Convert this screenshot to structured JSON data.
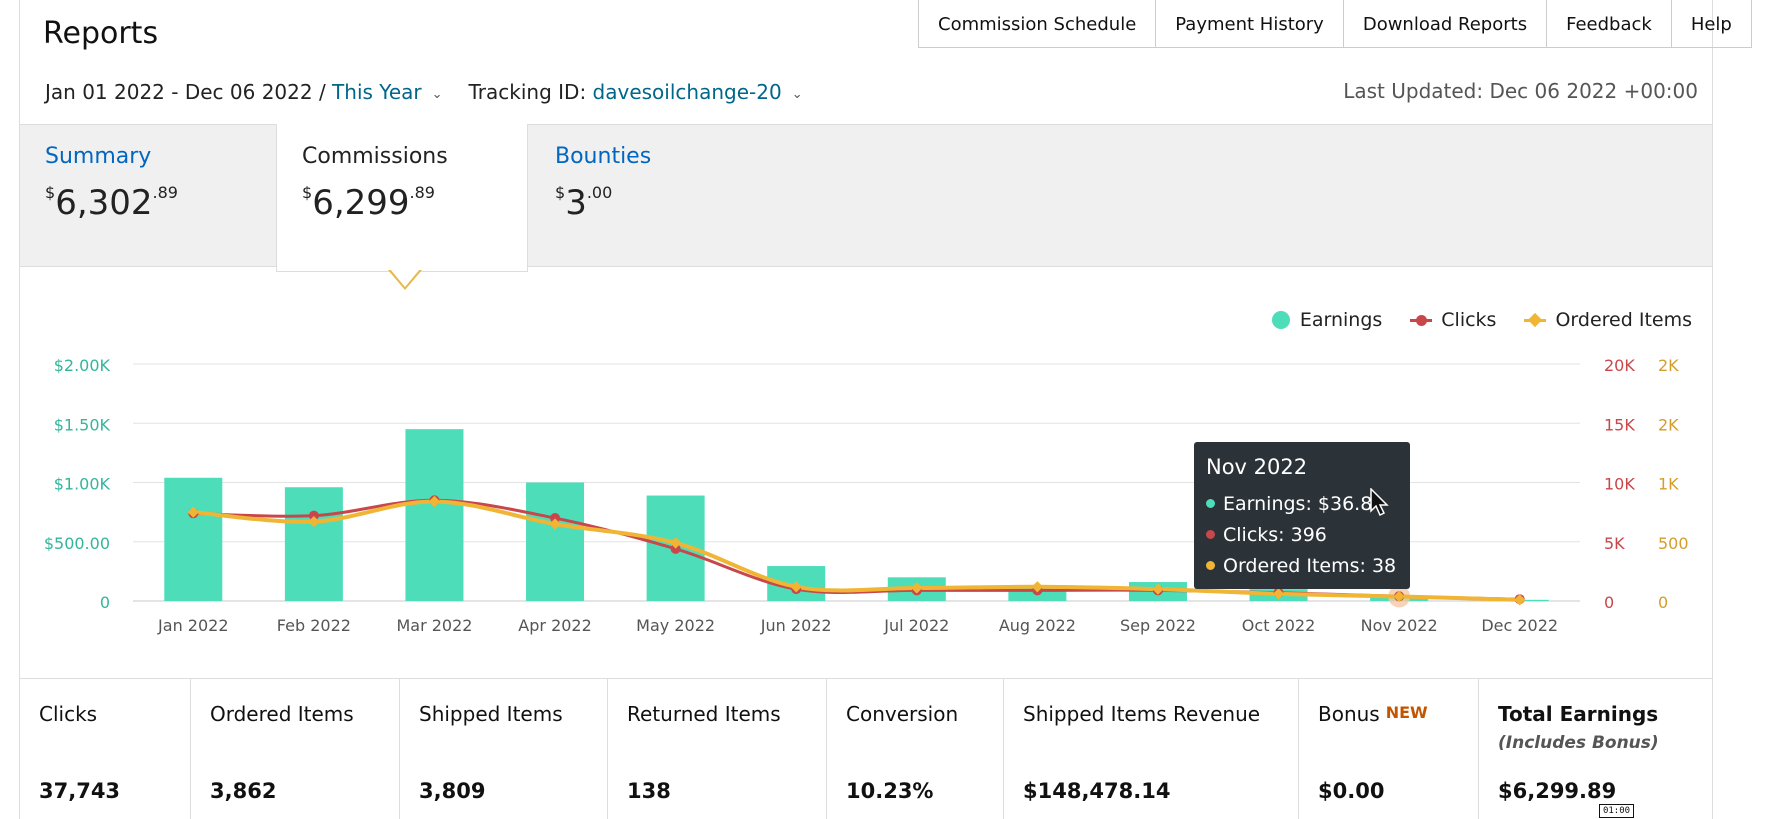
{
  "header": {
    "title": "Reports",
    "nav": [
      {
        "label": "Commission Schedule"
      },
      {
        "label": "Payment History"
      },
      {
        "label": "Download Reports"
      },
      {
        "label": "Feedback"
      },
      {
        "label": "Help"
      }
    ]
  },
  "filters": {
    "date_range": "Jan 01 2022 - Dec 06 2022 /",
    "date_preset": "This Year",
    "tracking_label": "Tracking ID:",
    "tracking_id": "davesoilchange-20",
    "last_updated": "Last Updated: Dec 06 2022 +00:00"
  },
  "tabs": [
    {
      "label": "Summary",
      "currency": "$",
      "whole": "6,302",
      "cents": ".89"
    },
    {
      "label": "Commissions",
      "currency": "$",
      "whole": "6,299",
      "cents": ".89"
    },
    {
      "label": "Bounties",
      "currency": "$",
      "whole": "3",
      "cents": ".00"
    }
  ],
  "legend": [
    {
      "label": "Earnings",
      "color": "#4dddb9",
      "icon": "dot-icon"
    },
    {
      "label": "Clicks",
      "color": "#c8474b",
      "icon": "line-dot-icon"
    },
    {
      "label": "Ordered Items",
      "color": "#f0b535",
      "icon": "line-diamond-icon"
    }
  ],
  "chart_data": {
    "type": "bar",
    "categories": [
      "Jan 2022",
      "Feb 2022",
      "Mar 2022",
      "Apr 2022",
      "May 2022",
      "Jun 2022",
      "Jul 2022",
      "Aug 2022",
      "Sep 2022",
      "Oct 2022",
      "Nov 2022",
      "Dec 2022"
    ],
    "series": [
      {
        "name": "Earnings",
        "type": "bar",
        "axis": "left",
        "color": "#4dddb9",
        "values": [
          1040,
          960,
          1450,
          1000,
          890,
          295,
          200,
          125,
          160,
          100,
          36.8,
          10
        ]
      },
      {
        "name": "Clicks",
        "type": "line",
        "axis": "right",
        "color": "#c8474b",
        "values": [
          7400,
          7200,
          8500,
          7000,
          4400,
          1000,
          900,
          900,
          900,
          700,
          396,
          150
        ]
      },
      {
        "name": "Ordered Items",
        "type": "line",
        "axis": "right2",
        "color": "#f0b535",
        "values": [
          750,
          670,
          840,
          650,
          490,
          120,
          110,
          120,
          100,
          60,
          38,
          10
        ]
      }
    ],
    "left_axis": {
      "ticks": [
        "0",
        "$500.00",
        "$1.00K",
        "$1.50K",
        "$2.00K"
      ],
      "max": 2000,
      "color": "#34b69b"
    },
    "right_axis": {
      "ticks": [
        "0",
        "5K",
        "10K",
        "15K",
        "20K"
      ],
      "max": 20000,
      "color": "#c8474b"
    },
    "right2_axis": {
      "ticks": [
        "0",
        "500",
        "1K",
        "2K",
        "2K"
      ],
      "max": 2000,
      "color": "#d39e2a"
    },
    "grid": true,
    "highlight_category": "Nov 2022"
  },
  "tooltip": {
    "title": "Nov 2022",
    "rows": [
      {
        "text": "Earnings: $36.8",
        "color": "#4dddb9"
      },
      {
        "text": "Clicks: 396",
        "color": "#c8474b"
      },
      {
        "text": "Ordered Items: 38",
        "color": "#f0b535"
      }
    ]
  },
  "stats": [
    {
      "label": "Clicks",
      "value": "37,743"
    },
    {
      "label": "Ordered Items",
      "value": "3,862"
    },
    {
      "label": "Shipped Items",
      "value": "3,809"
    },
    {
      "label": "Returned Items",
      "value": "138"
    },
    {
      "label": "Conversion",
      "value": "10.23%"
    },
    {
      "label": "Shipped Items Revenue",
      "value": "$148,478.14"
    },
    {
      "label": "Bonus",
      "badge": "NEW",
      "value": "$0.00"
    },
    {
      "label": "Total Earnings",
      "sublabel": "(Includes Bonus)",
      "value": "$6,299.89"
    }
  ],
  "overlay": {
    "timer": "01:00"
  }
}
